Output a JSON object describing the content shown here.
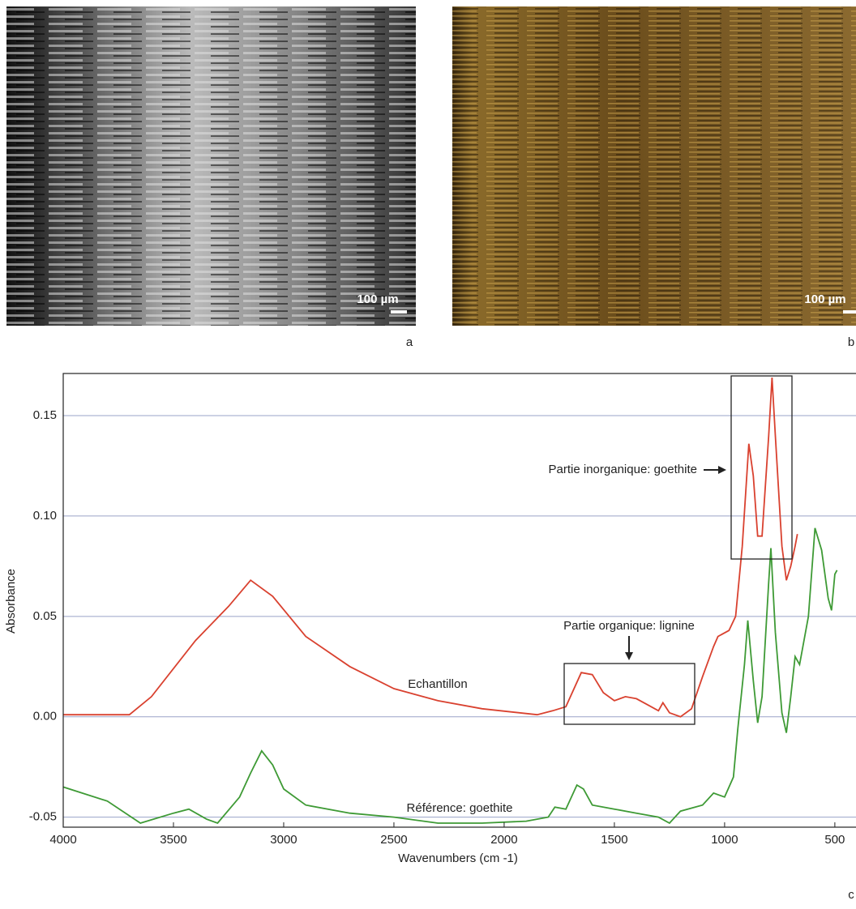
{
  "panels": {
    "a": {
      "label": "a",
      "scale": "100 µm"
    },
    "b": {
      "label": "b",
      "scale": "100 µm"
    },
    "c": {
      "label": "c"
    }
  },
  "chart_data": {
    "type": "line",
    "xlabel": "Wavenumbers (cm -1)",
    "ylabel": "Absorbance",
    "xlim": [
      4000,
      404
    ],
    "ylim": [
      -0.055,
      0.171
    ],
    "xticks": [
      4000,
      3500,
      3000,
      2500,
      2000,
      1500,
      1000,
      500
    ],
    "yticks": [
      -0.05,
      {
        "value": 0,
        "label": "0.00"
      },
      0.05,
      {
        "value": 0.1,
        "label": "0.10"
      },
      0.15
    ],
    "grid": true,
    "annotations": [
      "Partie inorganique: goethite",
      "Partie organique: lignine"
    ],
    "series": [
      {
        "name": "Echantillon",
        "color": "#d9412f",
        "x": [
          4000,
          3700,
          3600,
          3400,
          3250,
          3150,
          3050,
          2900,
          2700,
          2500,
          2300,
          2100,
          1850,
          1780,
          1720,
          1650,
          1600,
          1550,
          1500,
          1450,
          1400,
          1350,
          1300,
          1280,
          1250,
          1200,
          1150,
          1100,
          1050,
          1030,
          980,
          950,
          920,
          890,
          870,
          850,
          830,
          800,
          785,
          770,
          740,
          720,
          700,
          680,
          670
        ],
        "values": [
          0.001,
          0.001,
          0.01,
          0.038,
          0.055,
          0.068,
          0.06,
          0.04,
          0.025,
          0.014,
          0.008,
          0.004,
          0.001,
          0.003,
          0.005,
          0.022,
          0.021,
          0.012,
          0.008,
          0.01,
          0.009,
          0.006,
          0.003,
          0.007,
          0.002,
          0.0,
          0.004,
          0.02,
          0.035,
          0.04,
          0.043,
          0.05,
          0.085,
          0.136,
          0.12,
          0.09,
          0.09,
          0.14,
          0.169,
          0.14,
          0.085,
          0.068,
          0.075,
          0.085,
          0.091
        ]
      },
      {
        "name": "Référence: goethite",
        "color": "#3e9a35",
        "x": [
          4000,
          3800,
          3650,
          3500,
          3430,
          3350,
          3300,
          3200,
          3150,
          3100,
          3050,
          3000,
          2900,
          2700,
          2500,
          2300,
          2100,
          1900,
          1800,
          1770,
          1720,
          1670,
          1640,
          1600,
          1500,
          1400,
          1300,
          1250,
          1200,
          1100,
          1050,
          1000,
          960,
          940,
          910,
          895,
          870,
          850,
          830,
          800,
          790,
          770,
          740,
          720,
          700,
          680,
          660,
          620,
          590,
          560,
          530,
          515,
          500,
          490
        ],
        "values": [
          -0.035,
          -0.042,
          -0.053,
          -0.048,
          -0.046,
          -0.051,
          -0.053,
          -0.04,
          -0.028,
          -0.017,
          -0.024,
          -0.036,
          -0.044,
          -0.048,
          -0.05,
          -0.053,
          -0.053,
          -0.052,
          -0.05,
          -0.045,
          -0.046,
          -0.034,
          -0.036,
          -0.044,
          -0.046,
          -0.048,
          -0.05,
          -0.053,
          -0.047,
          -0.044,
          -0.038,
          -0.04,
          -0.03,
          -0.006,
          0.026,
          0.048,
          0.018,
          -0.003,
          0.01,
          0.067,
          0.084,
          0.042,
          0.002,
          -0.008,
          0.01,
          0.03,
          0.026,
          0.05,
          0.094,
          0.083,
          0.059,
          0.053,
          0.071,
          0.073
        ]
      }
    ]
  }
}
